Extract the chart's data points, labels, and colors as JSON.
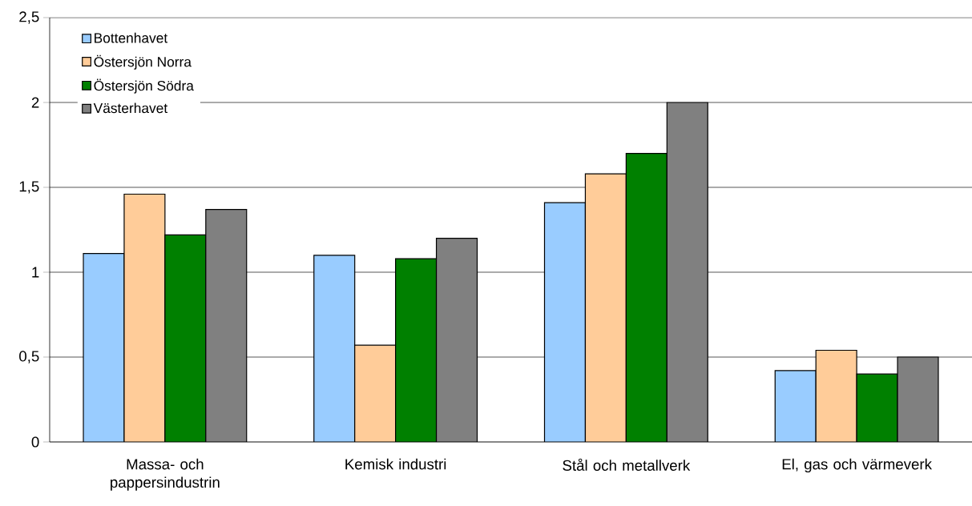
{
  "chart_data": {
    "type": "bar",
    "categories": [
      "Massa- och pappersindustrin",
      "Kemisk industri",
      "Stål och metallverk",
      "El, gas och värmeverk"
    ],
    "series": [
      {
        "name": "Bottenhavet",
        "color": "#99ccff",
        "values": [
          1.11,
          1.1,
          1.41,
          0.42
        ]
      },
      {
        "name": "Östersjön Norra",
        "color": "#ffcc99",
        "values": [
          1.46,
          0.57,
          1.58,
          0.54
        ]
      },
      {
        "name": "Östersjön Södra",
        "color": "#008000",
        "values": [
          1.22,
          1.08,
          1.7,
          0.4
        ]
      },
      {
        "name": "Västerhavet",
        "color": "#808080",
        "values": [
          1.37,
          1.2,
          2.0,
          0.5
        ]
      }
    ],
    "ylim": [
      0,
      2.5
    ],
    "yticks": [
      0,
      {
        "value": 0.5,
        "label": "0,5"
      },
      1,
      {
        "value": 1.5,
        "label": "1,5"
      },
      2,
      {
        "value": 2.5,
        "label": "2,5"
      }
    ],
    "grid": "y",
    "legend": "top left"
  }
}
